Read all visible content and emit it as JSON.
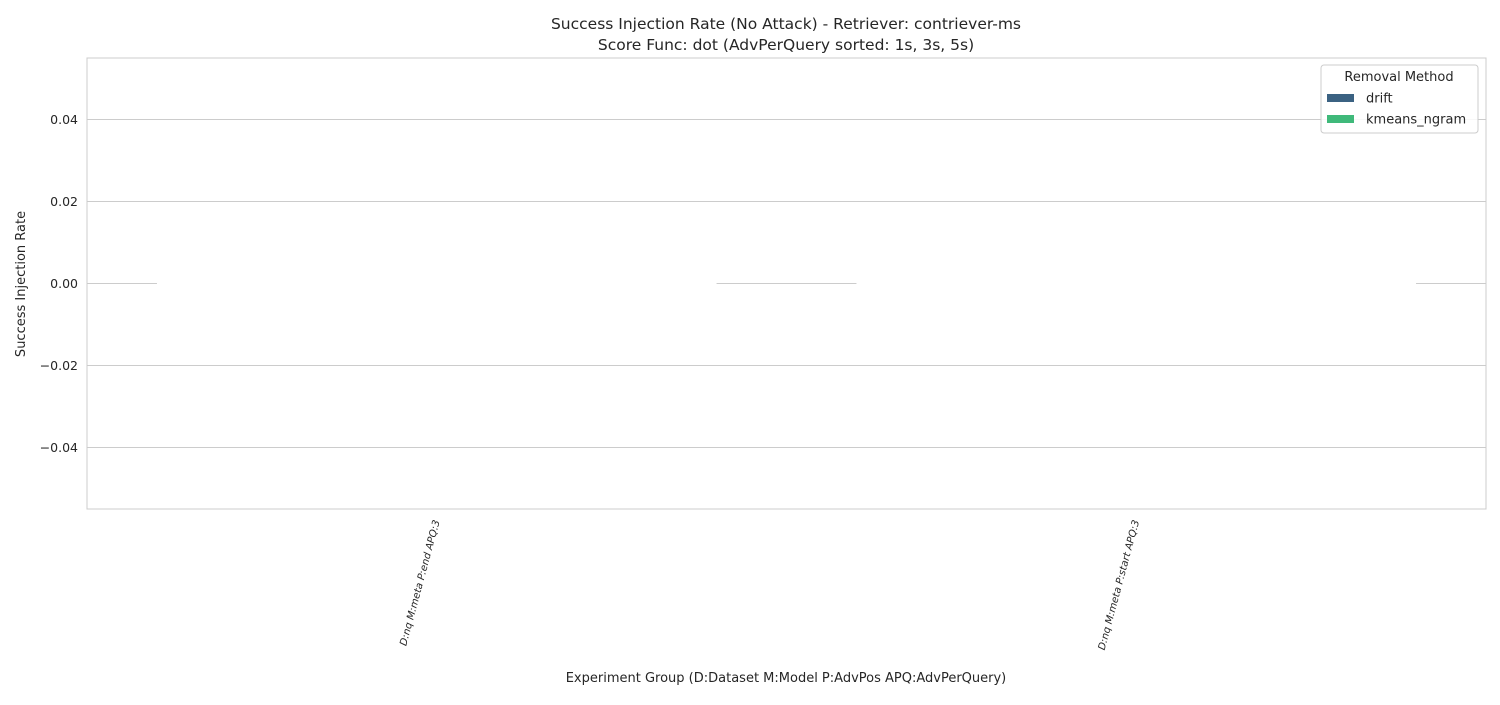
{
  "chart_data": {
    "type": "bar",
    "title_line1": "Success Injection Rate (No Attack) - Retriever: contriever-ms",
    "title_line2": "Score Func: dot (AdvPerQuery sorted: 1s, 3s, 5s)",
    "xlabel": "Experiment Group (D:Dataset M:Model P:AdvPos APQ:AdvPerQuery)",
    "ylabel": "Success Injection Rate",
    "categories": [
      "D:nq M:meta P:end APQ:3",
      "D:nq M:meta P:start APQ:3"
    ],
    "series": [
      {
        "name": "drift",
        "values": [
          0.0,
          0.0
        ],
        "color": "#3b6282"
      },
      {
        "name": "kmeans_ngram",
        "values": [
          0.0,
          0.0
        ],
        "color": "#3fb97a"
      }
    ],
    "ylim": [
      -0.055,
      0.055
    ],
    "yticks": [
      -0.04,
      -0.02,
      0.0,
      0.02,
      0.04
    ],
    "ytick_labels": [
      "−0.04",
      "−0.02",
      "0.00",
      "0.02",
      "0.04"
    ],
    "grid": true,
    "legend": {
      "title": "Removal Method",
      "placement": "top-right"
    }
  }
}
